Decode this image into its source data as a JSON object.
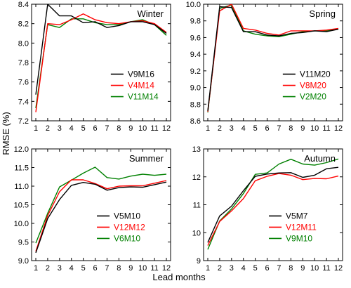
{
  "figure": {
    "ylabel": "RMSE (%)",
    "xlabel": "Lead months"
  },
  "chart_data": [
    {
      "type": "line",
      "title": "Winter",
      "x": [
        1,
        2,
        3,
        4,
        5,
        6,
        7,
        8,
        9,
        10,
        11,
        12
      ],
      "ylim": [
        7.2,
        8.4
      ],
      "yticks": [
        "7.2",
        "7.4",
        "7.6",
        "7.8",
        "8.0",
        "8.2",
        "8.4"
      ],
      "legend_position": "center-right",
      "series": [
        {
          "name": "V9M16",
          "color": "#000000",
          "values": [
            7.47,
            8.4,
            8.28,
            8.28,
            8.21,
            8.22,
            8.16,
            8.18,
            8.22,
            8.22,
            8.19,
            8.1
          ]
        },
        {
          "name": "V4M14",
          "color": "#ff0000",
          "values": [
            7.29,
            8.2,
            8.19,
            8.24,
            8.3,
            8.24,
            8.21,
            8.2,
            8.22,
            8.23,
            8.2,
            8.11
          ]
        },
        {
          "name": "V11M14",
          "color": "#008000",
          "values": [
            7.33,
            8.19,
            8.16,
            8.25,
            8.25,
            8.21,
            8.19,
            8.19,
            8.22,
            8.24,
            8.19,
            8.08
          ]
        }
      ]
    },
    {
      "type": "line",
      "title": "Spring",
      "x": [
        1,
        2,
        3,
        4,
        5,
        6,
        7,
        8,
        9,
        10,
        11,
        12
      ],
      "ylim": [
        8.6,
        10.0
      ],
      "yticks": [
        "8.6",
        "8.8",
        "9.0",
        "9.2",
        "9.4",
        "9.6",
        "9.8",
        "10.0"
      ],
      "legend_position": "center-right",
      "series": [
        {
          "name": "V11M20",
          "color": "#000000",
          "values": [
            8.72,
            9.97,
            9.96,
            9.67,
            9.67,
            9.63,
            9.62,
            9.65,
            9.66,
            9.68,
            9.67,
            9.7
          ]
        },
        {
          "name": "V8M20",
          "color": "#ff0000",
          "values": [
            8.71,
            9.92,
            10.0,
            9.71,
            9.69,
            9.65,
            9.63,
            9.68,
            9.68,
            9.68,
            9.69,
            9.71
          ]
        },
        {
          "name": "V2M20",
          "color": "#008000",
          "values": [
            8.7,
            9.95,
            9.99,
            9.68,
            9.64,
            9.62,
            9.61,
            9.64,
            9.67,
            9.68,
            9.68,
            9.7
          ]
        }
      ]
    },
    {
      "type": "line",
      "title": "Summer",
      "x": [
        1,
        2,
        3,
        4,
        5,
        6,
        7,
        8,
        9,
        10,
        11,
        12
      ],
      "ylim": [
        9.0,
        12.0
      ],
      "yticks": [
        "9.0",
        "9.5",
        "10.0",
        "10.5",
        "11.0",
        "11.5",
        "12.0"
      ],
      "legend_position": "bottom-right",
      "series": [
        {
          "name": "V5M10",
          "color": "#000000",
          "values": [
            9.21,
            10.13,
            10.64,
            11.02,
            11.1,
            11.05,
            10.89,
            10.96,
            10.98,
            10.97,
            11.04,
            11.11
          ]
        },
        {
          "name": "V12M12",
          "color": "#ff0000",
          "values": [
            9.25,
            10.21,
            10.85,
            11.17,
            11.17,
            11.07,
            10.93,
            11.0,
            11.01,
            11.01,
            11.08,
            11.15
          ]
        },
        {
          "name": "V6M10",
          "color": "#008000",
          "values": [
            9.47,
            10.27,
            10.98,
            11.16,
            11.35,
            11.51,
            11.23,
            11.19,
            11.27,
            11.32,
            11.29,
            11.32
          ]
        }
      ]
    },
    {
      "type": "line",
      "title": "Autumn",
      "x": [
        1,
        2,
        3,
        4,
        5,
        6,
        7,
        8,
        9,
        10,
        11,
        12
      ],
      "ylim": [
        9,
        13
      ],
      "yticks": [
        "9",
        "10",
        "11",
        "12",
        "13"
      ],
      "legend_position": "bottom-right",
      "series": [
        {
          "name": "V5M7",
          "color": "#000000",
          "values": [
            9.65,
            10.6,
            10.95,
            11.5,
            12.02,
            12.1,
            12.14,
            12.15,
            11.98,
            12.06,
            12.29,
            12.34
          ]
        },
        {
          "name": "V12M11",
          "color": "#ff0000",
          "values": [
            9.54,
            10.4,
            10.78,
            11.22,
            11.86,
            12.02,
            12.12,
            12.06,
            11.9,
            11.94,
            11.93,
            12.03
          ]
        },
        {
          "name": "V9M10",
          "color": "#008000",
          "values": [
            9.4,
            10.42,
            10.85,
            11.4,
            12.09,
            12.14,
            12.46,
            12.63,
            12.46,
            12.42,
            12.51,
            12.64
          ]
        }
      ]
    }
  ]
}
